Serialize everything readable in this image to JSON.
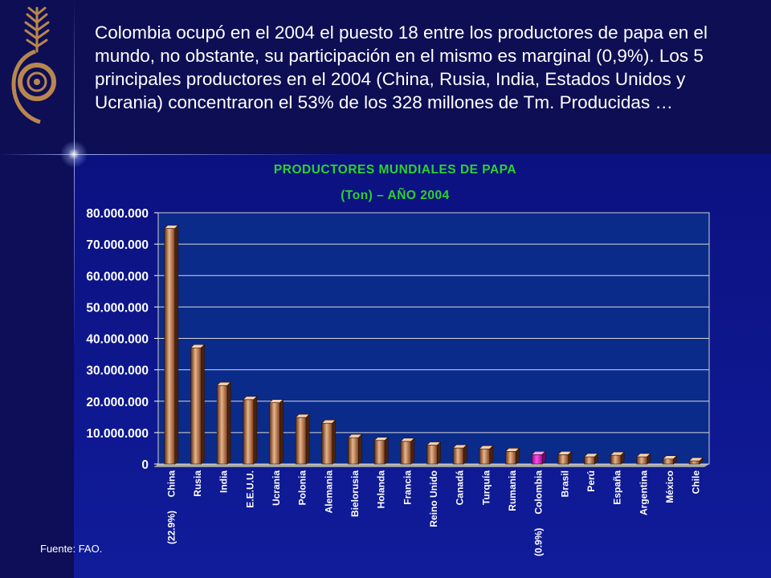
{
  "headline": "Colombia ocupó en el 2004 el puesto 18 entre los productores de papa en el mundo, no obstante, su participación en el mismo es marginal (0,9%). Los 5 principales productores en el 2004 (China, Rusia, India, Estados Unidos y Ucrania) concentraron el 53% de los 328 millones de Tm. Producidas …",
  "source": "Fuente: FAO.",
  "colors": {
    "title": "#2bd42b",
    "bar": "#b0693f",
    "bar_highlight": "#dd18cc",
    "plot_background": "#0b2b8a"
  },
  "icons": [
    "wheat-emblem-icon"
  ],
  "chart_data": {
    "type": "bar",
    "title": "PRODUCTORES MUNDIALES DE PAPA",
    "subtitle": "(Ton) – AÑO 2004",
    "xlabel": "",
    "ylabel": "",
    "categories": [
      "China",
      "Rusia",
      "India",
      "E.E.U.U.",
      "Ucrania",
      "Polonia",
      "Alemania",
      "Bielorusia",
      "Holanda",
      "Francia",
      "Reino Unido",
      "Canadá",
      "Turquía",
      "Rumania",
      "Colombia",
      "Brasil",
      "Perú",
      "España",
      "Argentina",
      "México",
      "Chile"
    ],
    "values": [
      75000000,
      37000000,
      25000000,
      20500000,
      19500000,
      14800000,
      13000000,
      8400000,
      7500000,
      7200000,
      6000000,
      5100000,
      4800000,
      4000000,
      3000000,
      3000000,
      2300000,
      2800000,
      2300000,
      1600000,
      1000000
    ],
    "highlight": "Colombia",
    "annotations": [
      {
        "category": "China",
        "text": "(22.9%)"
      },
      {
        "category": "Colombia",
        "text": "(0.9%)"
      }
    ],
    "ylim": [
      0,
      80000000
    ],
    "yticks": [
      0,
      10000000,
      20000000,
      30000000,
      40000000,
      50000000,
      60000000,
      70000000,
      80000000
    ],
    "ytick_labels": [
      "0",
      "10.000.000",
      "20.000.000",
      "30.000.000",
      "40.000.000",
      "50.000.000",
      "60.000.000",
      "70.000.000",
      "80.000.000"
    ],
    "grid": true,
    "legend": "none"
  }
}
